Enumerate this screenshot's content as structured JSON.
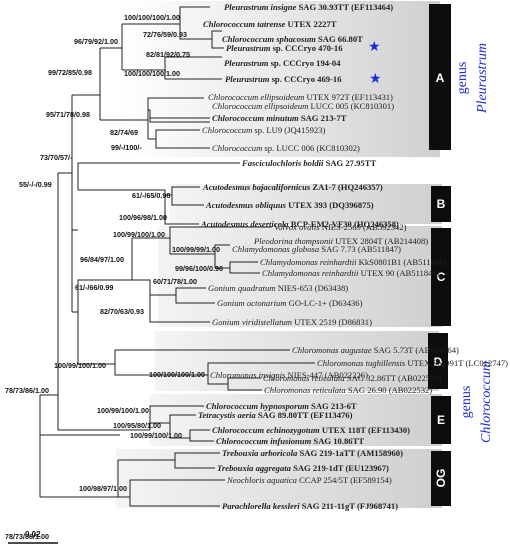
{
  "clades": {
    "A": "A",
    "B": "B",
    "C": "C",
    "D": "D",
    "E": "E",
    "OG": "OG"
  },
  "genus_labels": {
    "pleurastrum": {
      "word": "genus",
      "name": "Pleurastrum"
    },
    "chlorococcum": {
      "word": "genus",
      "name": "Chlorococcum"
    }
  },
  "markers": {
    "star": "★"
  },
  "scale_bar": "0.02",
  "taxa": [
    {
      "genus": "Pleurastrum insigne",
      "rest": " SAG 30.93TT (EF113464)"
    },
    {
      "genus": "Chlorococcum tatrense",
      "rest": " UTEX 2227T"
    },
    {
      "genus": "Chlorococcum sphacosum",
      "rest": " SAG 66.80T"
    },
    {
      "genus": "Pleurastrum",
      "rest": " sp. CCCryo 470-16"
    },
    {
      "genus": "Pleurastrum",
      "rest": " sp. CCCryo 194-04"
    },
    {
      "genus": "Pleurastrum",
      "rest": " sp. CCCryo 469-16"
    },
    {
      "genus": "Chlorococcum ellipsoideum",
      "rest": " UTEX 972T (EF113431)"
    },
    {
      "genus": "Chlorococcum ellipsoideum",
      "rest": " LUCC 005 (KC810301)"
    },
    {
      "genus": "Chlorococcum minutum",
      "rest": " SAG 213-7T"
    },
    {
      "genus": "Chlorococcum",
      "rest": " sp. LU9 (JQ415923)"
    },
    {
      "genus": "Chlorococcum",
      "rest": " sp. LUCC 006 (KC810302)"
    },
    {
      "genus": "Fasciculochloris boldii",
      "rest": " SAG 27.95TT"
    },
    {
      "genus": "Acutodesmus bajacalifornicus",
      "rest": " ZA1-7 (HQ246357)"
    },
    {
      "genus": "Acutodesmus obliquus",
      "rest": " UTEX 393 (DQ396875)"
    },
    {
      "genus": "Acutodesmus deserticola",
      "rest": " BCP-EM2-VF30 (HQ246358)"
    },
    {
      "genus": "Volvox ovalis",
      "rest": " NIES-2569 (AB592342)"
    },
    {
      "genus": "Pleodorina thompsonii",
      "rest": " UTEX 2804T (AB214408)"
    },
    {
      "genus": "Chlamydomonas globosa",
      "rest": " SAG 7.73 (AB511847)"
    },
    {
      "genus": "Chlamydomonas reinhardtii",
      "rest": " KkS0801B1 (AB511846)"
    },
    {
      "genus": "Chlamydomonas reinhardtii",
      "rest": " UTEX 90 (AB511845)"
    },
    {
      "genus": "Gonium quadratum",
      "rest": " NIES-653 (D63438)"
    },
    {
      "genus": "Gonium octonarium",
      "rest": " GO-LC-1+ (D63436)"
    },
    {
      "genus": "Gonium viridistellatum",
      "rest": " UTEX 2519 (D86831)"
    },
    {
      "genus": "Chloromonas augustae",
      "rest": " SAG 5.73T (AB504764)"
    },
    {
      "genus": "Chloromonas insignis",
      "rest": " NIES-447 (AB022226)"
    },
    {
      "genus": "Chloromonas tughillensis",
      "rest": " UTEX SNO91T (LC012747)"
    },
    {
      "genus": "Chloromonas reticulata",
      "rest": " SAG 32.86TT (AB022530)"
    },
    {
      "genus": "Chloromonas reticulata",
      "rest": " SAG 26.90 (AB022532)"
    },
    {
      "genus": "Chlorococcum hypnosporum",
      "rest": " SAG 213-6T"
    },
    {
      "genus": "Tetracystis aeria",
      "rest": " SAG 89.80TT (EF113476)"
    },
    {
      "genus": "Chlorococcum echinozygotum",
      "rest": " UTEX 118T (EF113430)"
    },
    {
      "genus": "Chlorococcum infusionum",
      "rest": " SAG 10.86TT"
    },
    {
      "genus": "Trebouxia arboricola",
      "rest": " SAG 219-1aTT (AM158960)"
    },
    {
      "genus": "Trebouxia aggregata",
      "rest": " SAG 219-1dT (EU123967)"
    },
    {
      "genus": "Neochloris aquatica",
      "rest": " CCAP 254/5T (EF589154)"
    },
    {
      "genus": "Parachlorella kessleri",
      "rest": " SAG 211-11gT (FJ968741)"
    }
  ],
  "support": [
    "100/100/100/1.00",
    "72/76/59/0.93",
    "96/79/92/1.00",
    "82/81/92/0.75",
    "100/100/100/1.00",
    "99/72/85/0.98",
    "95/71/78/0.98",
    "82/74/69",
    "99/-/100/-",
    "73/70/57/-",
    "55/-/-/0.99",
    "61/-/65/0.98",
    "100/96/98/1.00",
    "100/99/100/1.00",
    "96/84/97/1.00",
    "100/99/99/1.00",
    "99/96/100/0.96",
    "61/-/66/0.99",
    "60/71/78/1.00",
    "82/70/63/0.93",
    "100/99/100/1.00",
    "100/100/100/1.00",
    "78/73/86/1.00",
    "100/99/100/1.00",
    "100/95/80/1.00",
    "100/99/100/1.00",
    "100/98/97/1.00",
    "78/73/86/1.00"
  ]
}
